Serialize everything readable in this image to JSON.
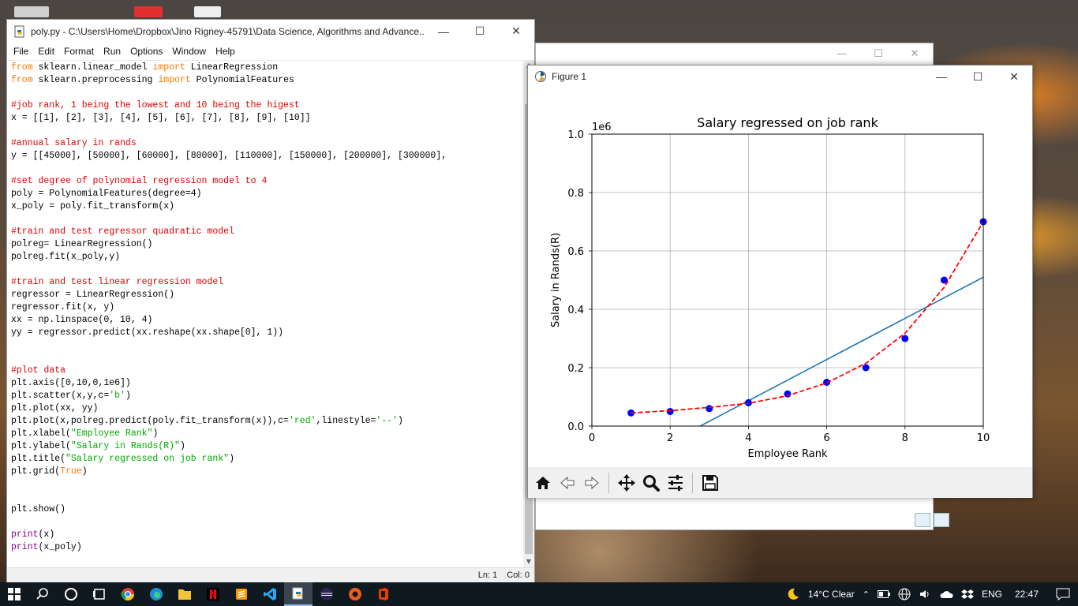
{
  "colors": {
    "keyword": "#ff7700",
    "comment": "#dd0000",
    "string": "#00aa00",
    "builtin": "#900090",
    "scatter": "#0000ff",
    "fit_line": "#1f77b4",
    "poly_line": "#ff0000"
  },
  "editor": {
    "title": "poly.py - C:\\Users\\Home\\Dropbox\\Jino Rigney-45791\\Data Science, Algorithms and Advance...",
    "menu": [
      "File",
      "Edit",
      "Format",
      "Run",
      "Options",
      "Window",
      "Help"
    ],
    "status": {
      "line": "Ln: 1",
      "col": "Col: 0"
    },
    "code": [
      [
        [
          "kw",
          "from"
        ],
        [
          "n",
          " sklearn.linear_model "
        ],
        [
          "kw",
          "import"
        ],
        [
          "n",
          " LinearRegression"
        ]
      ],
      [
        [
          "kw",
          "from"
        ],
        [
          "n",
          " sklearn.preprocessing "
        ],
        [
          "kw",
          "import"
        ],
        [
          "n",
          " PolynomialFeatures"
        ]
      ],
      [],
      [
        [
          "cm",
          "#job rank, 1 being the lowest and 10 being the higest"
        ]
      ],
      [
        [
          "n",
          "x = [[1], [2], [3], [4], [5], [6], [7], [8], [9], [10]]"
        ]
      ],
      [],
      [
        [
          "cm",
          "#annual salary in rands"
        ]
      ],
      [
        [
          "n",
          "y = [[45000], [50000], [60000], [80000], [110000], [150000], [200000], [300000],"
        ]
      ],
      [],
      [
        [
          "cm",
          "#set degree of polynomial regression model to 4"
        ]
      ],
      [
        [
          "n",
          "poly = PolynomialFeatures(degree=4)"
        ]
      ],
      [
        [
          "n",
          "x_poly = poly.fit_transform(x)"
        ]
      ],
      [],
      [
        [
          "cm",
          "#train and test regressor quadratic model"
        ]
      ],
      [
        [
          "n",
          "polreg= LinearRegression()"
        ]
      ],
      [
        [
          "n",
          "polreg.fit(x_poly,y)"
        ]
      ],
      [],
      [
        [
          "cm",
          "#train and test linear regression model"
        ]
      ],
      [
        [
          "n",
          "regressor = LinearRegression()"
        ]
      ],
      [
        [
          "n",
          "regressor.fit(x, y)"
        ]
      ],
      [
        [
          "n",
          "xx = np.linspace(0, 10, 4)"
        ]
      ],
      [
        [
          "n",
          "yy = regressor.predict(xx.reshape(xx.shape[0], 1))"
        ]
      ],
      [],
      [],
      [
        [
          "cm",
          "#plot data"
        ]
      ],
      [
        [
          "n",
          "plt.axis([0,10,0,1e6])"
        ]
      ],
      [
        [
          "n",
          "plt.scatter(x,y,c="
        ],
        [
          "st",
          "'b'"
        ],
        [
          "n",
          ")"
        ]
      ],
      [
        [
          "n",
          "plt.plot(xx, yy)"
        ]
      ],
      [
        [
          "n",
          "plt.plot(x,polreg.predict(poly.fit_transform(x)),c="
        ],
        [
          "st",
          "'red'"
        ],
        [
          "n",
          ",linestyle="
        ],
        [
          "st",
          "'--'"
        ],
        [
          "n",
          ")"
        ]
      ],
      [
        [
          "n",
          "plt.xlabel("
        ],
        [
          "st",
          "\"Employee Rank\""
        ],
        [
          "n",
          ")"
        ]
      ],
      [
        [
          "n",
          "plt.ylabel("
        ],
        [
          "st",
          "\"Salary in Rands(R)\""
        ],
        [
          "n",
          ")"
        ]
      ],
      [
        [
          "n",
          "plt.title("
        ],
        [
          "st",
          "\"Salary regressed on job rank\""
        ],
        [
          "n",
          ")"
        ]
      ],
      [
        [
          "n",
          "plt.grid("
        ],
        [
          "kw",
          "True"
        ],
        [
          "n",
          ")"
        ]
      ],
      [],
      [],
      [
        [
          "n",
          "plt.show()"
        ]
      ],
      [],
      [
        [
          "bi",
          "print"
        ],
        [
          "n",
          "(x)"
        ]
      ],
      [
        [
          "bi",
          "print"
        ],
        [
          "n",
          "(x_poly)"
        ]
      ]
    ]
  },
  "figure_window": {
    "title": "Figure 1",
    "toolbar": [
      "home-icon",
      "back-arrow-icon",
      "forward-arrow-icon",
      "pan-icon",
      "zoom-icon",
      "configure-subplots-icon",
      "save-icon"
    ]
  },
  "chart_data": {
    "type": "scatter",
    "title": "Salary regressed on job rank",
    "xlabel": "Employee Rank",
    "ylabel": "Salary in Rands(R)",
    "offset_text": "1e6",
    "xlim": [
      0,
      10
    ],
    "ylim": [
      0,
      1.0
    ],
    "grid": true,
    "x_ticks": [
      "0",
      "2",
      "4",
      "6",
      "8",
      "10"
    ],
    "y_ticks": [
      "0.0",
      "0.2",
      "0.4",
      "0.6",
      "0.8",
      "1.0"
    ],
    "series": [
      {
        "kind": "scatter",
        "color": "#0000ff",
        "x": [
          1,
          2,
          3,
          4,
          5,
          6,
          7,
          8,
          9,
          10
        ],
        "y": [
          0.045,
          0.05,
          0.06,
          0.08,
          0.11,
          0.15,
          0.2,
          0.3,
          0.5,
          0.7
        ]
      },
      {
        "kind": "line",
        "color": "#1f77b4",
        "x": [
          0,
          3.333,
          6.667,
          10
        ],
        "y": [
          -0.195,
          0.04,
          0.275,
          0.51
        ]
      },
      {
        "kind": "line-dashed",
        "color": "#ff0000",
        "x": [
          1,
          2,
          3,
          4,
          5,
          6,
          7,
          8,
          9,
          10
        ],
        "y": [
          0.045,
          0.053,
          0.064,
          0.078,
          0.104,
          0.148,
          0.215,
          0.318,
          0.475,
          0.7
        ]
      }
    ]
  },
  "taskbar": {
    "weather": "14°C  Clear",
    "lang": "ENG",
    "time": "22:47"
  }
}
